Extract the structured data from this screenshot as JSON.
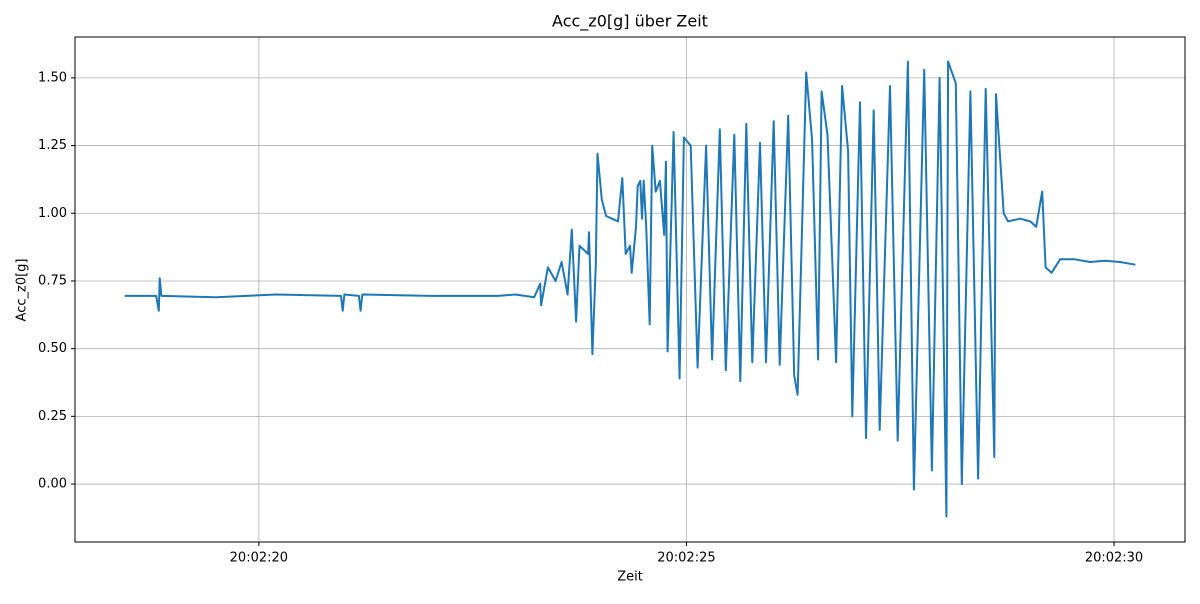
{
  "chart_data": {
    "type": "line",
    "title": "Acc_z0[g] über Zeit",
    "x_label": "Zeit",
    "y_label": "Acc_z0[g]",
    "xlim": [
      17.85,
      30.83
    ],
    "ylim": [
      -0.214,
      1.651
    ],
    "xticks": [
      {
        "value": 20,
        "label": "20:02:20"
      },
      {
        "value": 25,
        "label": "20:02:25"
      },
      {
        "value": 30,
        "label": "20:02:30"
      }
    ],
    "yticks": [
      {
        "value": 0,
        "label": "0.00"
      },
      {
        "value": 0.25,
        "label": "0.25"
      },
      {
        "value": 0.5,
        "label": "0.50"
      },
      {
        "value": 0.75,
        "label": "0.75"
      },
      {
        "value": 1,
        "label": "1.00"
      },
      {
        "value": 1.25,
        "label": "1.25"
      },
      {
        "value": 1.5,
        "label": "1.50"
      }
    ],
    "grid": true,
    "series": [
      {
        "name": "Acc_z0[g]",
        "color": "#1f77b4",
        "x": [
          18.43,
          18.8,
          18.83,
          18.84,
          18.86,
          19.5,
          20.2,
          20.96,
          20.98,
          21.0,
          21.17,
          21.19,
          21.21,
          22.0,
          22.8,
          23.0,
          23.22,
          23.29,
          23.3,
          23.38,
          23.47,
          23.54,
          23.61,
          23.66,
          23.71,
          23.75,
          23.85,
          23.86,
          23.9,
          23.94,
          23.96,
          24.01,
          24.06,
          24.13,
          24.2,
          24.25,
          24.29,
          24.34,
          24.36,
          24.41,
          24.43,
          24.46,
          24.48,
          24.5,
          24.53,
          24.57,
          24.6,
          24.64,
          24.69,
          24.74,
          24.76,
          24.78,
          24.85,
          24.92,
          24.97,
          25.05,
          25.13,
          25.23,
          25.3,
          25.39,
          25.46,
          25.56,
          25.63,
          25.7,
          25.77,
          25.86,
          25.93,
          26.02,
          26.09,
          26.19,
          26.26,
          26.3,
          26.4,
          26.47,
          26.54,
          26.58,
          26.65,
          26.75,
          26.82,
          26.89,
          26.94,
          27.03,
          27.1,
          27.19,
          27.26,
          27.38,
          27.47,
          27.59,
          27.66,
          27.78,
          27.87,
          27.96,
          28.04,
          28.06,
          28.15,
          28.22,
          28.32,
          28.41,
          28.5,
          28.6,
          28.62,
          28.71,
          28.76,
          28.9,
          29.02,
          29.09,
          29.16,
          29.2,
          29.27,
          29.37,
          29.54,
          29.72,
          29.89,
          30.07,
          30.25
        ],
        "values": [
          0.695,
          0.695,
          0.64,
          0.76,
          0.695,
          0.69,
          0.7,
          0.695,
          0.64,
          0.7,
          0.695,
          0.64,
          0.7,
          0.695,
          0.695,
          0.7,
          0.69,
          0.74,
          0.66,
          0.8,
          0.75,
          0.82,
          0.7,
          0.94,
          0.6,
          0.88,
          0.85,
          0.93,
          0.48,
          0.81,
          1.22,
          1.05,
          0.99,
          0.98,
          0.97,
          1.13,
          0.85,
          0.88,
          0.78,
          0.95,
          1.1,
          1.12,
          0.98,
          1.12,
          0.95,
          0.59,
          1.25,
          1.08,
          1.12,
          0.92,
          1.19,
          0.49,
          1.3,
          0.39,
          1.28,
          1.25,
          0.43,
          1.25,
          0.46,
          1.31,
          0.42,
          1.29,
          0.38,
          1.33,
          0.45,
          1.26,
          0.45,
          1.34,
          0.44,
          1.36,
          0.4,
          0.33,
          1.52,
          1.27,
          0.46,
          1.45,
          1.29,
          0.45,
          1.47,
          1.23,
          0.25,
          1.41,
          0.17,
          1.38,
          0.2,
          1.47,
          0.16,
          1.56,
          -0.02,
          1.53,
          0.05,
          1.5,
          -0.12,
          1.56,
          1.48,
          0.0,
          1.45,
          0.02,
          1.46,
          0.1,
          1.44,
          1.0,
          0.97,
          0.98,
          0.97,
          0.95,
          1.08,
          0.8,
          0.78,
          0.83,
          0.83,
          0.82,
          0.825,
          0.82,
          0.81
        ]
      }
    ]
  }
}
